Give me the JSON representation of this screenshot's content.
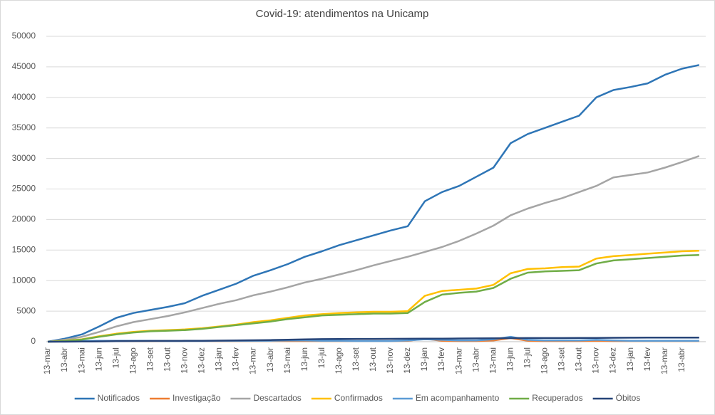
{
  "chart_data": {
    "type": "line",
    "title": "Covid-19: atendimentos  na Unicamp",
    "categories": [
      "13-mar",
      "13-abr",
      "13-mai",
      "13-jun",
      "13-jul",
      "13-ago",
      "13-set",
      "13-out",
      "13-nov",
      "13-dez",
      "13-jan",
      "13-fev",
      "13-mar",
      "13-abr",
      "13-mai",
      "13-jun",
      "13-jul",
      "13-ago",
      "13-set",
      "13-out",
      "13-nov",
      "13-dez",
      "13-jan",
      "13-fev",
      "13-mar",
      "13-abr",
      "13-mai",
      "13-jun",
      "13-jul",
      "13-ago",
      "13-set",
      "13-out",
      "13-nov",
      "13-dez",
      "13-jan",
      "13-fev",
      "13-mar",
      "13-abr",
      null
    ],
    "series": [
      {
        "name": "Notificados",
        "color": "#2e75b6",
        "values": [
          0,
          500,
          1200,
          2500,
          3900,
          4700,
          5200,
          5700,
          6300,
          7500,
          8500,
          9500,
          10800,
          11700,
          12700,
          13900,
          14800,
          15800,
          16600,
          17400,
          18200,
          18900,
          23000,
          24500,
          25500,
          27000,
          28500,
          32500,
          34000,
          35000,
          36000,
          37000,
          40000,
          41200,
          41700,
          42300,
          43700,
          44700,
          45300
        ]
      },
      {
        "name": "Investigação",
        "color": "#ed7d31",
        "values": [
          0,
          50,
          80,
          100,
          100,
          100,
          100,
          100,
          100,
          100,
          100,
          100,
          100,
          100,
          100,
          100,
          100,
          100,
          100,
          100,
          100,
          150,
          500,
          150,
          100,
          100,
          200,
          600,
          150,
          100,
          100,
          100,
          150,
          100,
          100,
          100,
          100,
          100,
          100
        ]
      },
      {
        "name": "Descartados",
        "color": "#a5a5a5",
        "values": [
          0,
          300,
          800,
          1600,
          2500,
          3200,
          3700,
          4200,
          4800,
          5500,
          6200,
          6800,
          7600,
          8200,
          8900,
          9700,
          10300,
          11000,
          11700,
          12500,
          13200,
          13900,
          14700,
          15500,
          16500,
          17700,
          19000,
          20700,
          21800,
          22700,
          23500,
          24500,
          25500,
          26900,
          27300,
          27700,
          28500,
          29400,
          30400
        ]
      },
      {
        "name": "Confirmados",
        "color": "#ffc000",
        "values": [
          0,
          150,
          400,
          900,
          1300,
          1600,
          1800,
          1900,
          2000,
          2200,
          2500,
          2800,
          3200,
          3500,
          3900,
          4300,
          4500,
          4700,
          4800,
          4900,
          4900,
          5000,
          7500,
          8300,
          8500,
          8700,
          9300,
          11200,
          11900,
          12000,
          12200,
          12300,
          13600,
          14000,
          14200,
          14400,
          14600,
          14800,
          14900
        ]
      },
      {
        "name": "Em acompanhamento",
        "color": "#5b9bd5",
        "values": [
          0,
          50,
          100,
          150,
          150,
          150,
          150,
          100,
          100,
          100,
          150,
          150,
          150,
          150,
          200,
          200,
          150,
          150,
          100,
          100,
          100,
          200,
          400,
          300,
          200,
          200,
          400,
          800,
          300,
          200,
          200,
          200,
          300,
          200,
          150,
          150,
          150,
          150,
          150
        ]
      },
      {
        "name": "Recuperados",
        "color": "#70ad47",
        "values": [
          0,
          100,
          350,
          800,
          1200,
          1500,
          1700,
          1800,
          1900,
          2100,
          2400,
          2700,
          3000,
          3300,
          3700,
          4000,
          4300,
          4400,
          4500,
          4600,
          4600,
          4700,
          6500,
          7700,
          8000,
          8200,
          8800,
          10300,
          11300,
          11500,
          11600,
          11700,
          12800,
          13300,
          13500,
          13700,
          13900,
          14100,
          14200
        ]
      },
      {
        "name": "Óbitos",
        "color": "#264478",
        "values": [
          0,
          5,
          20,
          50,
          80,
          100,
          120,
          130,
          140,
          150,
          170,
          200,
          230,
          270,
          320,
          380,
          420,
          440,
          450,
          460,
          470,
          480,
          490,
          500,
          520,
          540,
          560,
          580,
          590,
          600,
          600,
          610,
          620,
          640,
          650,
          660,
          660,
          670,
          680
        ]
      }
    ],
    "ylim": [
      0,
      50000
    ],
    "yticks": [
      0,
      5000,
      10000,
      15000,
      20000,
      25000,
      30000,
      35000,
      40000,
      45000,
      50000
    ],
    "grid": true,
    "legend": "bottom"
  }
}
